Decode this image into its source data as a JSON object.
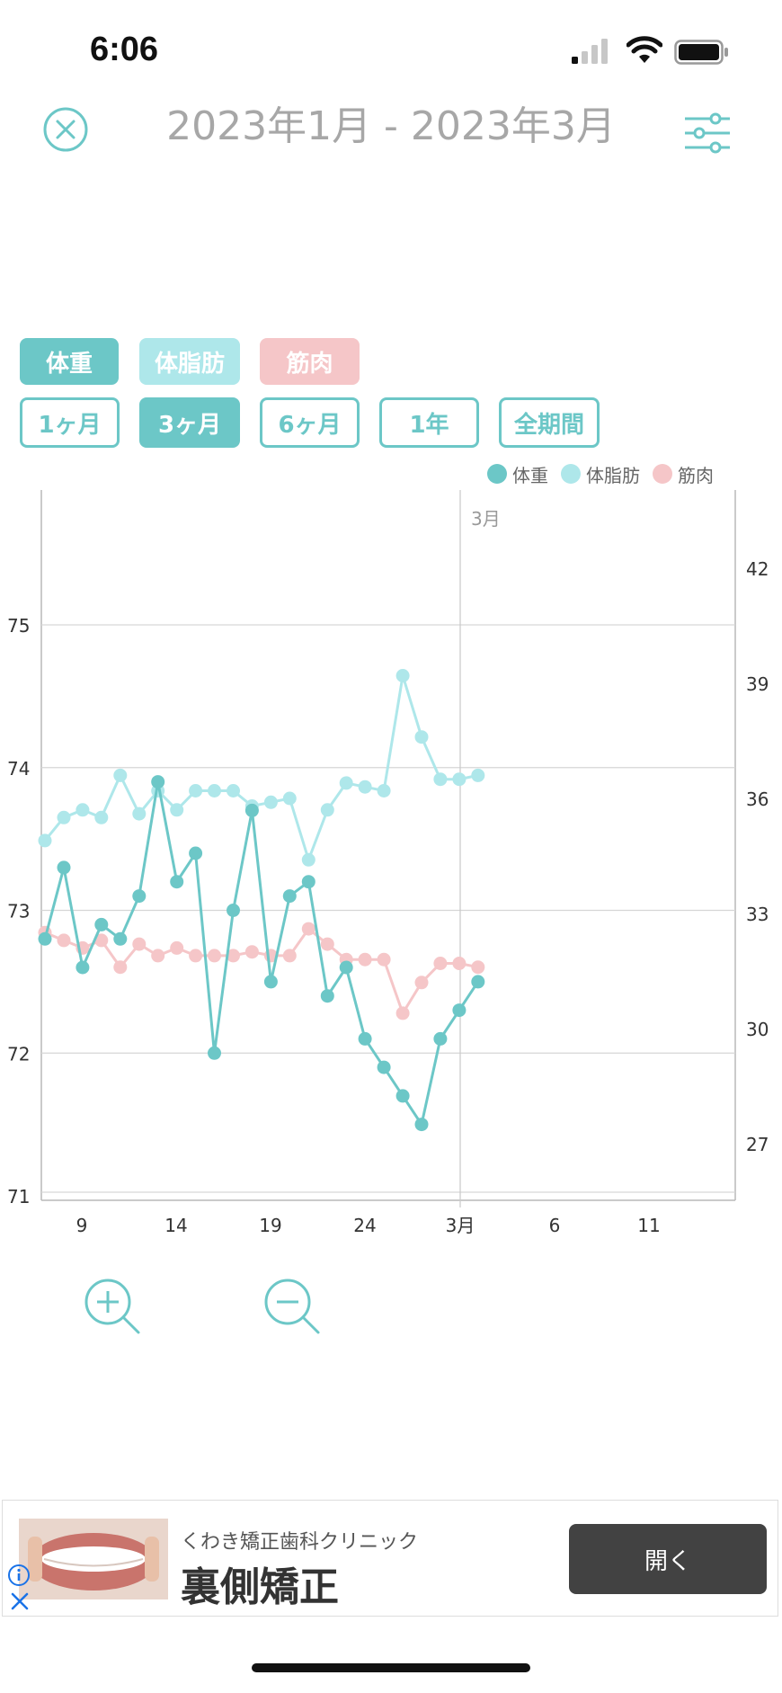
{
  "status_bar": {
    "time": "6:06"
  },
  "header": {
    "title": "2023年1月 - 2023年3月"
  },
  "metric_chips": [
    {
      "label": "体重",
      "color": "#6cc7c7"
    },
    {
      "label": "体脂肪",
      "color": "#aee7ea"
    },
    {
      "label": "筋肉",
      "color": "#f5c6c8"
    }
  ],
  "ranges": [
    {
      "label": "1ヶ月",
      "active": false
    },
    {
      "label": "3ヶ月",
      "active": true
    },
    {
      "label": "6ヶ月",
      "active": false
    },
    {
      "label": "1年",
      "active": false
    },
    {
      "label": "全期間",
      "active": false
    }
  ],
  "legend": {
    "weight": "体重",
    "fat": "体脂肪",
    "muscle": "筋肉"
  },
  "chart_data": {
    "type": "line",
    "month_marker_label": "3月",
    "x_tick_labels": [
      "9",
      "14",
      "19",
      "24",
      "3月",
      "6",
      "11"
    ],
    "y_left": {
      "ticks": [
        71,
        72,
        73,
        74,
        75
      ]
    },
    "y_right": {
      "ticks": [
        27,
        30,
        33,
        36,
        39,
        42
      ]
    },
    "grid": true,
    "legend_position": "top-right",
    "series": [
      {
        "name": "体重",
        "axis": "left",
        "color": "#6cc7c7",
        "values": [
          72.8,
          73.3,
          72.6,
          72.9,
          72.8,
          73.1,
          73.9,
          73.2,
          73.4,
          72.0,
          73.0,
          73.7,
          72.5,
          73.1,
          73.2,
          72.4,
          72.6,
          72.1,
          71.9,
          71.7,
          71.5,
          72.1,
          72.3,
          72.5
        ]
      },
      {
        "name": "体脂肪",
        "axis": "right",
        "color": "#aee7ea",
        "values": [
          34.9,
          35.5,
          35.7,
          35.5,
          36.6,
          35.6,
          36.2,
          35.7,
          36.2,
          36.2,
          36.2,
          35.8,
          35.9,
          36.0,
          34.4,
          35.7,
          36.4,
          36.3,
          36.2,
          39.2,
          37.6,
          36.5,
          36.5,
          36.6
        ]
      },
      {
        "name": "筋肉",
        "axis": "right",
        "color": "#f5c6c8",
        "values": [
          32.5,
          32.3,
          32.1,
          32.3,
          31.6,
          32.2,
          31.9,
          32.1,
          31.9,
          31.9,
          31.9,
          32.0,
          31.9,
          31.9,
          32.6,
          32.2,
          31.8,
          31.8,
          31.8,
          30.4,
          31.2,
          31.7,
          31.7,
          31.6
        ]
      }
    ]
  },
  "ad": {
    "sponsor": "くわき矯正歯科クリニック",
    "headline": "裏側矯正",
    "cta": "開く"
  }
}
